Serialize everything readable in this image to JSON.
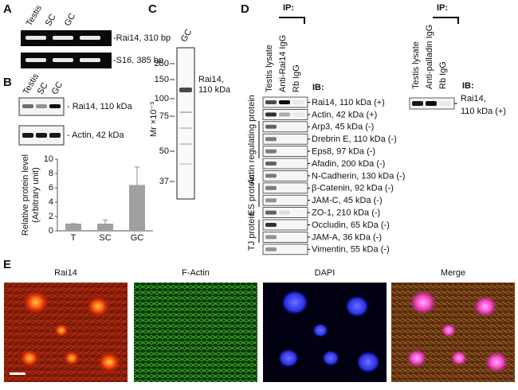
{
  "panels": {
    "A": {
      "label": "A",
      "lanes": [
        "Testis",
        "SC",
        "GC"
      ],
      "bands": [
        "-Rai14, 310 bp",
        "-S16, 385 bp"
      ]
    },
    "B": {
      "label": "B",
      "lanes": [
        "Testis",
        "SC",
        "GC"
      ],
      "bands": [
        "- Rai14, 110 kDa",
        "- Actin, 42 kDa"
      ],
      "chart": {
        "type": "bar",
        "y_label": [
          "Relative protein level",
          "(Arbitrary unit)"
        ],
        "categories": [
          "T",
          "SC",
          "GC"
        ],
        "values": [
          1,
          1,
          6.4
        ],
        "errors": [
          0,
          0.5,
          2.5
        ],
        "color": "#a0a0a0",
        "ylim": [
          0,
          10
        ],
        "yticks": [
          0,
          2,
          4,
          6,
          8,
          10
        ]
      }
    },
    "C": {
      "label": "C",
      "lane": "GC",
      "axis_label": "Mr ×10⁻³",
      "markers": [
        250,
        150,
        100,
        75,
        50,
        37
      ],
      "band_label": [
        "Rai14,",
        "110 kDa"
      ]
    },
    "D": {
      "label": "D",
      "ip": "IP:",
      "lanes": [
        "Testis lysate",
        "Anti-Rai14 IgG",
        "Rb IgG"
      ],
      "ib": "IB:",
      "rows": [
        "Rai14, 110 kDa (+)",
        "Actin, 42 kDa (+)",
        "Arp3, 45 kDa (-)",
        "Drebrin E, 110 kDa (-)",
        "Eps8, 97 kDa (-)",
        "Afadin, 200 kDa (-)",
        "N-Cadherin, 130 kDa (-)",
        "β-Catenin, 92 kDa (-)",
        "JAM-C, 45 kDa (-)",
        "ZO-1, 210 kDa (-)",
        "Occludin, 65 kDa (-)",
        "JAM-A, 36 kDa (-)",
        "Vimentin, 55 kDa (-)"
      ],
      "groups": [
        "Actin regulating protein",
        "ES protein",
        "TJ protein"
      ],
      "side": {
        "ip": "IP:",
        "lanes": [
          "Testis lysate",
          "Anti-palladin IgG",
          "Rb IgG"
        ],
        "ib": "IB:",
        "row": [
          "Rai14,",
          "110 kDa (+)"
        ]
      }
    },
    "E": {
      "label": "E",
      "channels": [
        "Rai14",
        "F-Actin",
        "DAPI",
        "Merge"
      ]
    }
  }
}
